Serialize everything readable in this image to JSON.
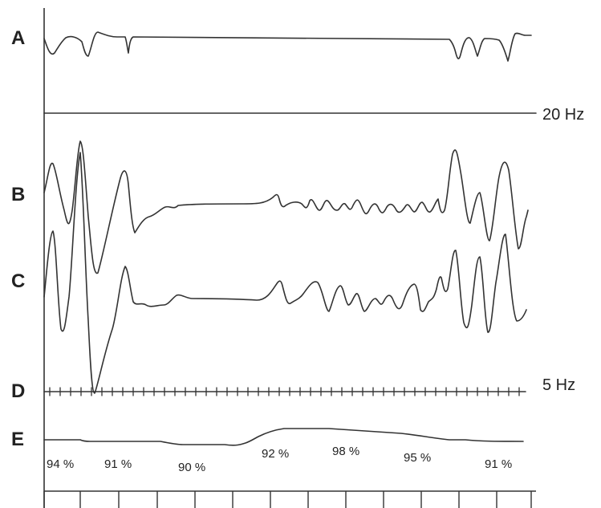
{
  "channels": [
    {
      "label": "A"
    },
    {
      "label": "B"
    },
    {
      "label": "C"
    },
    {
      "label": "D"
    },
    {
      "label": "E"
    }
  ],
  "frequency_labels": [
    "20 Hz",
    "5 Hz"
  ],
  "saturation_values": [
    "94 %",
    "91 %",
    "90 %",
    "92 %",
    "98 %",
    "95 %",
    "91 %"
  ]
}
